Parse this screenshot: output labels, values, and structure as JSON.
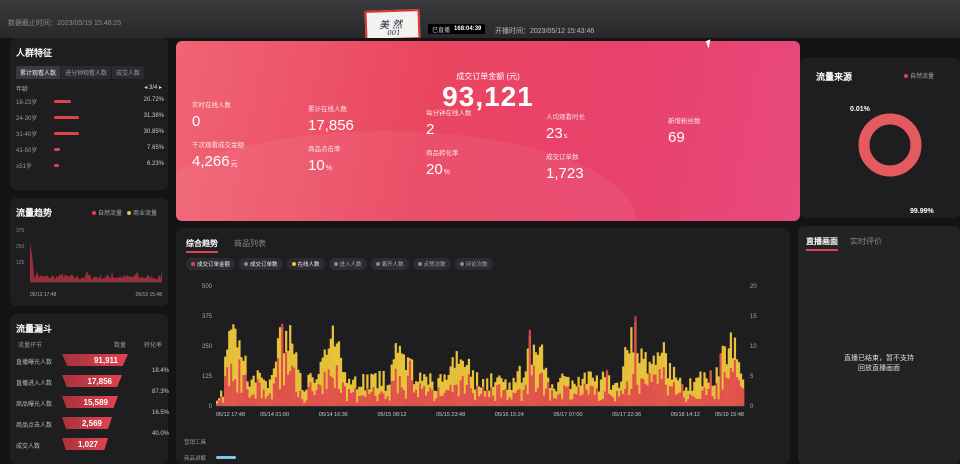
{
  "topbar": {
    "data_time": "数据截止时间：2023/05/19 15:48:25",
    "live_tag": "已直播",
    "live_duration": "168:04:39",
    "start_time": "开播时间：2023/05/12 15:43:46",
    "signature": [
      "美 然",
      "001"
    ]
  },
  "crowd": {
    "title": "人群特征",
    "tabs": [
      "累计观看人数",
      "进分钟观看人数",
      "成交人数"
    ],
    "age_header": "年龄",
    "pager": "◂ 3/4 ▸",
    "rows": [
      {
        "label": "18-23岁",
        "pct": "20.72%",
        "value": 0.2072
      },
      {
        "label": "24-30岁",
        "pct": "31.38%",
        "value": 0.3138
      },
      {
        "label": "31-40岁",
        "pct": "30.85%",
        "value": 0.3085
      },
      {
        "label": "41-50岁",
        "pct": "7.65%",
        "value": 0.0765
      },
      {
        "label": "≥51岁",
        "pct": "6.23%",
        "value": 0.0623
      }
    ]
  },
  "trend": {
    "title": "流量趋势",
    "legend": [
      "自然流量",
      "商业流量"
    ],
    "yticks": [
      "375",
      "250",
      "125"
    ],
    "x_start": "05/12 17:48",
    "x_end": "05/19 15:48"
  },
  "funnel": {
    "title": "流量漏斗",
    "head_stage": "流量环节",
    "head_count": "数量",
    "head_rate": "转化率",
    "rows": [
      {
        "label": "直播曝光人数",
        "value": "91,911"
      },
      {
        "label": "直播进入人数",
        "value": "17,856"
      },
      {
        "label": "商品曝光人数",
        "value": "15,589"
      },
      {
        "label": "商品点击人数",
        "value": "2,569"
      },
      {
        "label": "成交人数",
        "value": "1,027"
      }
    ],
    "rates": [
      "18.4%",
      "87.3%",
      "16.5%",
      "40.0%"
    ]
  },
  "hero": {
    "title": "成交订单金额 (元)",
    "value": "93,121",
    "metrics": [
      {
        "label": "实时在线人数",
        "value": "0",
        "unit": ""
      },
      {
        "label": "累计在线人数",
        "value": "17,856",
        "unit": ""
      },
      {
        "label": "每分钟在线人数",
        "value": "2",
        "unit": ""
      },
      {
        "label": "人均观看时长",
        "value": "23",
        "unit": "s"
      },
      {
        "label": "新增粉丝数",
        "value": "69",
        "unit": ""
      },
      {
        "label": "千次观看成交金额",
        "value": "4,266",
        "unit": "元"
      },
      {
        "label": "商品点击率",
        "value": "10",
        "unit": "%"
      },
      {
        "label": "商品转化率",
        "value": "20",
        "unit": "%"
      },
      {
        "label": "成交订单数",
        "value": "1,723",
        "unit": ""
      }
    ]
  },
  "source": {
    "title": "流量来源",
    "legend": "自然流量",
    "small_pct": "0.01%",
    "large_pct": "99.99%",
    "natural_fraction": 0.9999
  },
  "main": {
    "tabs": [
      "综合趋势",
      "商品列表"
    ],
    "chips": [
      "成交订单金额",
      "成交订单数",
      "在线人数",
      "进入人数",
      "离开人数",
      "点赞次数",
      "评论次数"
    ],
    "chip_colors": [
      "#e0424f",
      "#888888",
      "#e8c23a",
      "#888888",
      "#888888",
      "#888888",
      "#888888"
    ],
    "tool_labels": [
      "营销工具",
      "商品讲解"
    ]
  },
  "chart_data": {
    "type": "bar",
    "title": "",
    "xlabel": "",
    "ylabel": "",
    "ylim": [
      0,
      500
    ],
    "y2lim": [
      0,
      20
    ],
    "yticks": [
      0,
      125,
      250,
      375,
      500
    ],
    "y2ticks": [
      0,
      5,
      10,
      15,
      20
    ],
    "x_tick_labels": [
      "05/12 17:48",
      "05/14 01:00",
      "05/14 16:36",
      "05/15 08:12",
      "05/15 23:48",
      "05/16 15:24",
      "05/17 07:00",
      "05/17 22:36",
      "05/18 14:12",
      "05/19 15:48"
    ],
    "series": [
      {
        "name": "在线人数",
        "color": "#e8c23a"
      },
      {
        "name": "成交订单金额",
        "color": "#e0424f"
      }
    ]
  },
  "live_panel": {
    "tabs": [
      "直播画面",
      "实时评价"
    ],
    "message": [
      "直播已结束，暂不支持",
      "回放直播画面"
    ]
  }
}
